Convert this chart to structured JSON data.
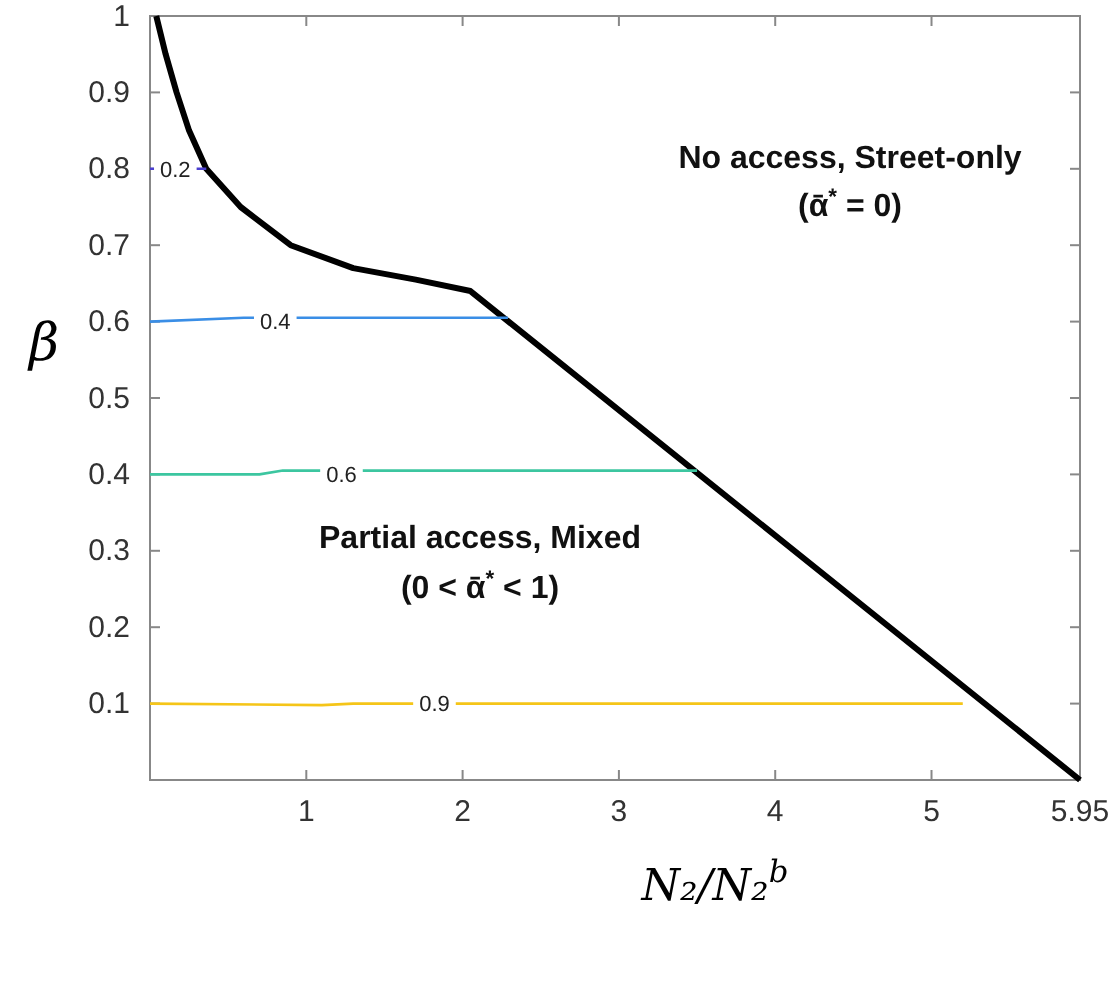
{
  "chart_data": {
    "type": "line",
    "xlabel": "N₂/N₂$^{b}$",
    "ylabel": "β",
    "xlim": [
      0,
      5.95
    ],
    "ylim": [
      0,
      1
    ],
    "xticks": [
      1,
      2,
      3,
      4,
      5,
      5.95
    ],
    "yticks": [
      0.1,
      0.2,
      0.3,
      0.4,
      0.5,
      0.6,
      0.7,
      0.8,
      0.9,
      1
    ],
    "grid": false,
    "legend": false,
    "line_style": "solid",
    "marker": "none",
    "series": [
      {
        "color": "#000000",
        "x": [
          0.04,
          0.1,
          0.17,
          0.25,
          0.36,
          0.58,
          0.9,
          1.3,
          1.7,
          2.05,
          5.95
        ],
        "values": [
          1,
          0.95,
          0.9,
          0.85,
          0.8,
          0.75,
          0.7,
          0.67,
          0.655,
          0.64,
          0
        ]
      },
      {
        "name": "0.2",
        "color": "#4b3fd0",
        "x": [
          0,
          0.36
        ],
        "values": [
          0.8,
          0.8
        ]
      },
      {
        "name": "0.4",
        "color": "#3a8ee6",
        "x": [
          0,
          0.6,
          2.29
        ],
        "values": [
          0.6,
          0.605,
          0.605
        ]
      },
      {
        "name": "0.6",
        "color": "#3cc6a0",
        "x": [
          0,
          0.7,
          0.85,
          3.5
        ],
        "values": [
          0.4,
          0.4,
          0.405,
          0.405
        ]
      },
      {
        "name": "0.9",
        "color": "#f5c518",
        "x": [
          0,
          1.1,
          1.3,
          5.2
        ],
        "values": [
          0.1,
          0.098,
          0.1,
          0.1
        ]
      }
    ],
    "annotations": [
      "No access, Street-only",
      "(ᾱ$^{*}$ = 0)",
      "Partial access, Mixed",
      "(0 < ᾱ$^{*}$ < 1)"
    ]
  }
}
